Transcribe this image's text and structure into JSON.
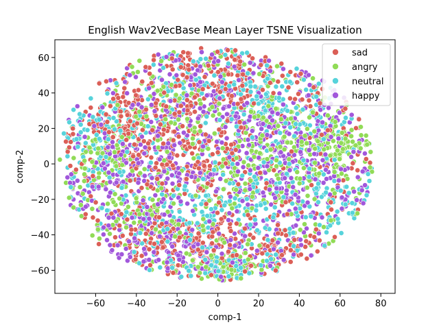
{
  "chart_data": {
    "type": "scatter",
    "title": "English Wav2VecBase Mean Layer TSNE Visualization",
    "xlabel": "comp-1",
    "ylabel": "comp-2",
    "xlim": [
      -80,
      87
    ],
    "ylim": [
      -73,
      70
    ],
    "xticks": [
      -60,
      -40,
      -20,
      0,
      20,
      40,
      60,
      80
    ],
    "yticks": [
      -60,
      -40,
      -20,
      0,
      20,
      40,
      60
    ],
    "legend_position": "top-right",
    "grid": false,
    "series": [
      {
        "name": "sad",
        "color": "#db5f57",
        "approx_count": 900,
        "clusters": [
          [
            -18,
            42,
            15,
            12
          ],
          [
            8,
            46,
            12,
            9
          ],
          [
            -28,
            10,
            16,
            12
          ],
          [
            -10,
            0,
            12,
            10
          ],
          [
            -32,
            -40,
            10,
            8
          ],
          [
            0,
            -45,
            10,
            8
          ],
          [
            30,
            -48,
            10,
            6
          ],
          [
            -45,
            25,
            10,
            8
          ]
        ]
      },
      {
        "name": "angry",
        "color": "#91db57",
        "approx_count": 800,
        "clusters": [
          [
            -58,
            5,
            10,
            10
          ],
          [
            -40,
            -25,
            12,
            10
          ],
          [
            15,
            0,
            12,
            12
          ],
          [
            42,
            0,
            14,
            14
          ],
          [
            60,
            10,
            8,
            8
          ],
          [
            5,
            -58,
            10,
            5
          ],
          [
            -20,
            30,
            12,
            10
          ],
          [
            30,
            20,
            10,
            10
          ]
        ]
      },
      {
        "name": "neutral",
        "color": "#57d3db",
        "approx_count": 800,
        "clusters": [
          [
            -20,
            45,
            12,
            10
          ],
          [
            20,
            40,
            8,
            8
          ],
          [
            -45,
            0,
            14,
            16
          ],
          [
            10,
            -20,
            12,
            12
          ],
          [
            50,
            -20,
            14,
            12
          ],
          [
            40,
            25,
            12,
            10
          ],
          [
            -15,
            -35,
            10,
            10
          ],
          [
            5,
            -58,
            10,
            5
          ],
          [
            -55,
            20,
            8,
            8
          ]
        ]
      },
      {
        "name": "happy",
        "color": "#a157db",
        "approx_count": 1000,
        "clusters": [
          [
            -50,
            -5,
            14,
            18
          ],
          [
            -25,
            10,
            14,
            14
          ],
          [
            -30,
            -40,
            12,
            10
          ],
          [
            0,
            -55,
            14,
            8
          ],
          [
            30,
            -15,
            16,
            14
          ],
          [
            55,
            -5,
            14,
            16
          ],
          [
            40,
            20,
            14,
            12
          ],
          [
            10,
            20,
            12,
            10
          ],
          [
            -10,
            45,
            14,
            10
          ]
        ]
      }
    ]
  }
}
